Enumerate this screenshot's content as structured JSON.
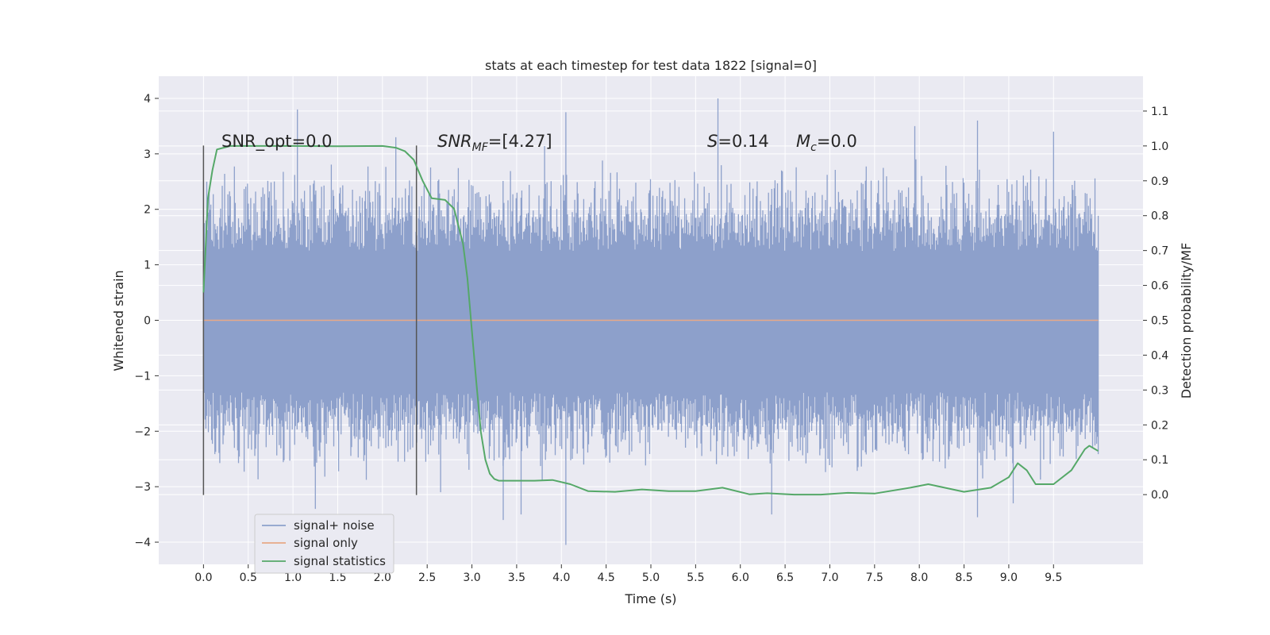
{
  "chart_data": {
    "type": "line",
    "title": "stats at each timestep for test data 1822 [signal=0]",
    "xlabel": "Time (s)",
    "ylabel_left": "Whitened strain",
    "ylabel_right": "Detection probability/MF",
    "xlim": [
      -0.5,
      10.5
    ],
    "ylim_left": [
      -4.4,
      4.4
    ],
    "ylim_right": [
      -0.2,
      1.2
    ],
    "x_ticks": [
      "0.0",
      "0.5",
      "1.0",
      "1.5",
      "2.0",
      "2.5",
      "3.0",
      "3.5",
      "4.0",
      "4.5",
      "5.0",
      "5.5",
      "6.0",
      "6.5",
      "7.0",
      "7.5",
      "8.0",
      "8.5",
      "9.0",
      "9.5"
    ],
    "y_ticks_left": [
      "−4",
      "−3",
      "−2",
      "−1",
      "0",
      "1",
      "2",
      "3",
      "4"
    ],
    "y_ticks_right": [
      "0.0",
      "0.1",
      "0.2",
      "0.3",
      "0.4",
      "0.5",
      "0.6",
      "0.7",
      "0.8",
      "0.9",
      "1.0",
      "1.1"
    ],
    "grid": true,
    "legend_position": "lower-left",
    "annotations": {
      "snr_opt": "SNR_opt=0.0",
      "snr_mf_sym": "SNR",
      "snr_mf_sub": "MF",
      "snr_mf_val": "=[4.27]",
      "s_sym": "S",
      "s_val": "=0.14",
      "mc_sym": "M",
      "mc_sub": "c",
      "mc_val": "=0.0"
    },
    "vertical_markers_x": [
      0.0,
      2.38
    ],
    "series": [
      {
        "name": "signal+ noise",
        "color": "#8da0cb",
        "axis": "left",
        "x_range": [
          0.0,
          10.0
        ],
        "band": [
          -1.3,
          1.25
        ],
        "extremes": [
          {
            "x": 1.05,
            "y": 3.8
          },
          {
            "x": 1.25,
            "y": -3.4
          },
          {
            "x": 2.15,
            "y": 3.3
          },
          {
            "x": 2.65,
            "y": -3.1
          },
          {
            "x": 3.35,
            "y": -3.6
          },
          {
            "x": 3.55,
            "y": -3.5
          },
          {
            "x": 4.05,
            "y": 3.75
          },
          {
            "x": 4.05,
            "y": -4.05
          },
          {
            "x": 5.75,
            "y": 4.0
          },
          {
            "x": 6.35,
            "y": -3.5
          },
          {
            "x": 7.95,
            "y": 3.5
          },
          {
            "x": 8.65,
            "y": 3.6
          },
          {
            "x": 8.65,
            "y": -3.55
          },
          {
            "x": 9.05,
            "y": -3.3
          },
          {
            "x": 9.5,
            "y": 3.4
          }
        ]
      },
      {
        "name": "signal only",
        "color": "#e8a987",
        "axis": "left",
        "x": [
          0.0,
          10.0
        ],
        "y": [
          0.0,
          0.0
        ]
      },
      {
        "name": "signal statistics",
        "color": "#55a868",
        "axis": "right",
        "x": [
          0.0,
          0.05,
          0.1,
          0.15,
          0.3,
          0.6,
          1.0,
          1.5,
          2.0,
          2.15,
          2.25,
          2.35,
          2.45,
          2.55,
          2.7,
          2.8,
          2.9,
          2.95,
          3.0,
          3.05,
          3.1,
          3.15,
          3.2,
          3.25,
          3.3,
          3.4,
          3.5,
          3.7,
          3.9,
          4.1,
          4.3,
          4.6,
          4.9,
          5.2,
          5.5,
          5.8,
          6.1,
          6.3,
          6.6,
          6.9,
          7.2,
          7.5,
          7.9,
          8.1,
          8.5,
          8.8,
          9.0,
          9.1,
          9.2,
          9.3,
          9.5,
          9.7,
          9.85,
          9.9,
          10.0
        ],
        "y": [
          0.58,
          0.85,
          0.93,
          0.99,
          1.0,
          1.0,
          1.0,
          0.999,
          1.0,
          0.995,
          0.985,
          0.96,
          0.9,
          0.85,
          0.845,
          0.82,
          0.72,
          0.62,
          0.47,
          0.32,
          0.18,
          0.1,
          0.06,
          0.045,
          0.04,
          0.04,
          0.04,
          0.04,
          0.042,
          0.03,
          0.01,
          0.008,
          0.015,
          0.01,
          0.01,
          0.02,
          0.001,
          0.004,
          0.0,
          0.0,
          0.005,
          0.003,
          0.02,
          0.03,
          0.008,
          0.02,
          0.05,
          0.09,
          0.07,
          0.03,
          0.03,
          0.07,
          0.13,
          0.14,
          0.125
        ]
      }
    ]
  }
}
